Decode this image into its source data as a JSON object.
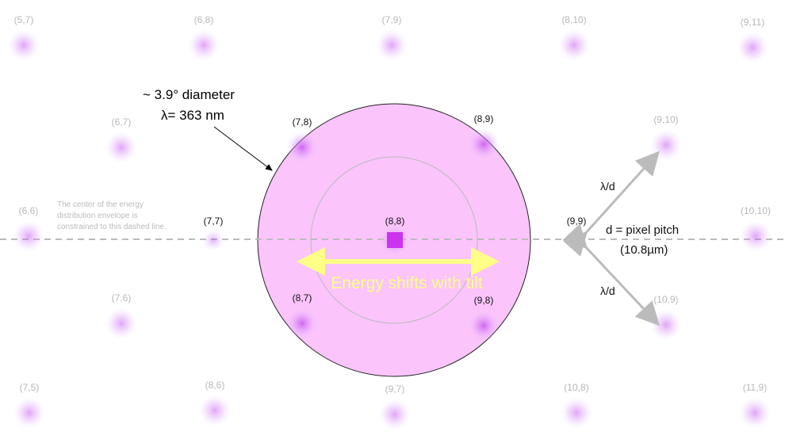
{
  "annotation": {
    "diameter": "~ 3.9° diameter",
    "wavelength": "λ= 363 nm"
  },
  "note": [
    "The center of the energy",
    "distribution envelope is",
    "constrained to this dashed line."
  ],
  "energy_label": "Energy shifts with tilt",
  "lambda_d_upper": "λ/d",
  "lambda_d_lower": "λ/d",
  "pitch_label": "d = pixel pitch",
  "pitch_value": "(10.8µm)",
  "colors": {
    "envelope": "#fbc4fb",
    "spot": "#cc33ee",
    "arrow": "#ffff88",
    "dashed": "#bbbbbb"
  },
  "points": [
    {
      "label": "(5,7)",
      "level": "faint"
    },
    {
      "label": "(6,8)",
      "level": "faint"
    },
    {
      "label": "(7,9)",
      "level": "faint"
    },
    {
      "label": "(8,10)",
      "level": "faint"
    },
    {
      "label": "(9,11)",
      "level": "faint"
    },
    {
      "label": "(6,7)",
      "level": "faint"
    },
    {
      "label": "(7,8)",
      "level": "inside"
    },
    {
      "label": "(8,9)",
      "level": "inside"
    },
    {
      "label": "(9,10)",
      "level": "faint"
    },
    {
      "label": "(6,6)",
      "level": "faint"
    },
    {
      "label": "(7,7)",
      "level": "edge"
    },
    {
      "label": "(8,8)",
      "level": "center"
    },
    {
      "label": "(9,9)",
      "level": "edge"
    },
    {
      "label": "(10,10)",
      "level": "faint"
    },
    {
      "label": "(7,6)",
      "level": "faint"
    },
    {
      "label": "(8,7)",
      "level": "inside"
    },
    {
      "label": "(9,8)",
      "level": "inside"
    },
    {
      "label": "(10,9)",
      "level": "faint"
    },
    {
      "label": "(7,5)",
      "level": "faint"
    },
    {
      "label": "(8,6)",
      "level": "faint"
    },
    {
      "label": "(9,7)",
      "level": "faint"
    },
    {
      "label": "(10,8)",
      "level": "faint"
    },
    {
      "label": "(11,9)",
      "level": "faint"
    }
  ]
}
